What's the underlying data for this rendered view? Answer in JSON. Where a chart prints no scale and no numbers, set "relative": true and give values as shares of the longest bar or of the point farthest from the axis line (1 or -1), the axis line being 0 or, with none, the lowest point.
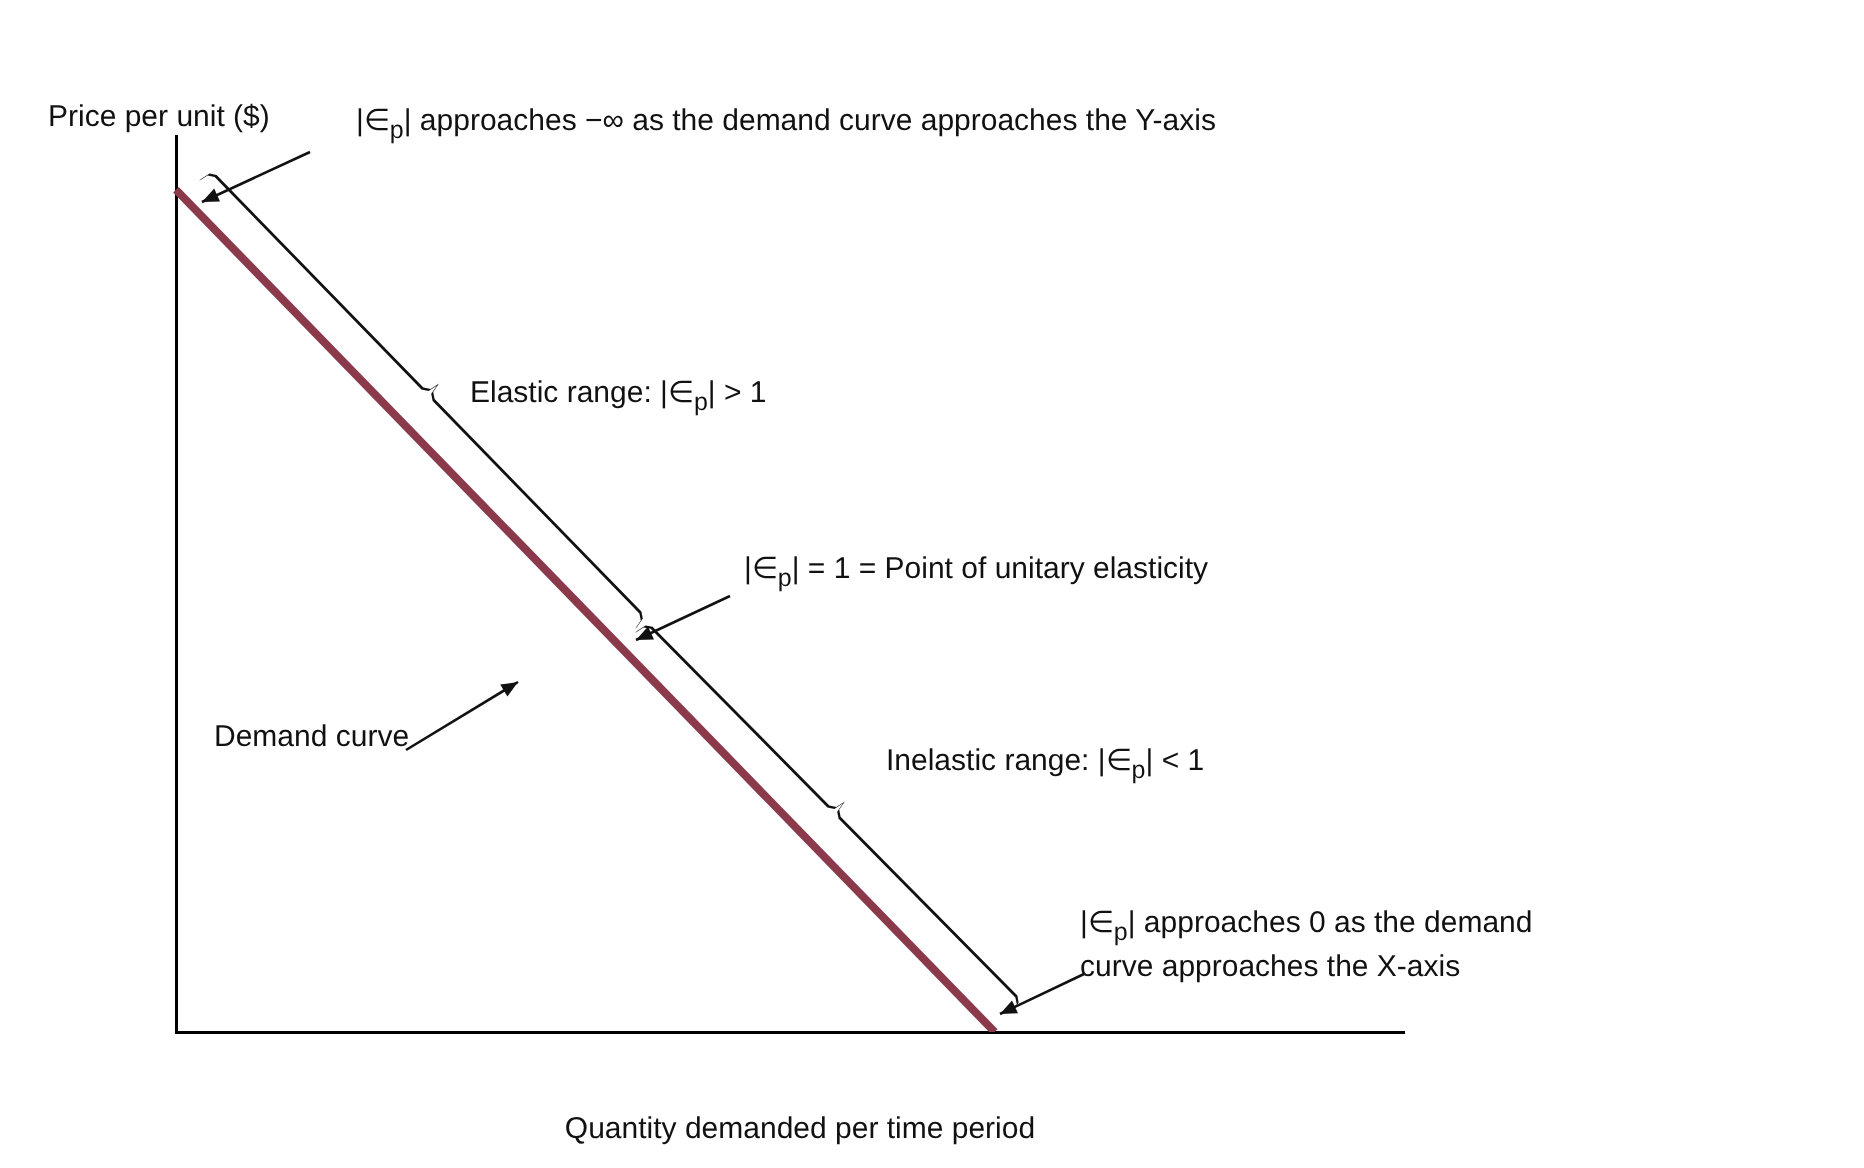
{
  "chart_data": {
    "type": "line",
    "relative": true,
    "xlabel": "Quantity demanded per time period",
    "ylabel": "Price per unit ($)",
    "categories": [
      null,
      null,
      null,
      null
    ],
    "series": [
      {
        "color": "#8b3a4c",
        "values": [
          1,
          0.5,
          0,
          null
        ]
      }
    ],
    "marker": "none",
    "grid": false,
    "legend": false,
    "tick_labels": false,
    "annotations": [
      "|∈$_{p}$| approaches −∞ as the demand curve approaches the Y-axis",
      "Elastic range: |∈$_{p}$| > 1",
      "|∈$_{p}$| = 1 = Point of unitary elasticity",
      "Demand curve",
      "Inelastic range: |∈$_{p}$| < 1",
      "|∈$_{p}$| approaches 0 as the demand\ncurve approaches the X-axis"
    ]
  }
}
